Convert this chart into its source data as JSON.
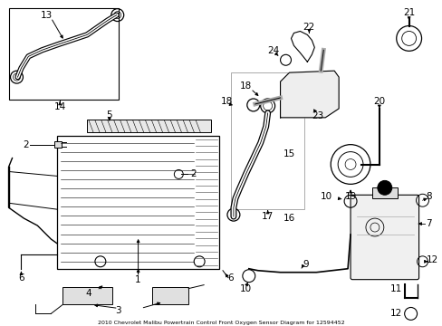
{
  "title": "2010 Chevrolet Malibu Powertrain Control Front Oxygen Sensor Diagram for 12594452",
  "background_color": "#ffffff",
  "fig_width": 4.89,
  "fig_height": 3.6,
  "dpi": 100,
  "line_color": "#000000",
  "text_color": "#000000",
  "label_fontsize": 7.5
}
